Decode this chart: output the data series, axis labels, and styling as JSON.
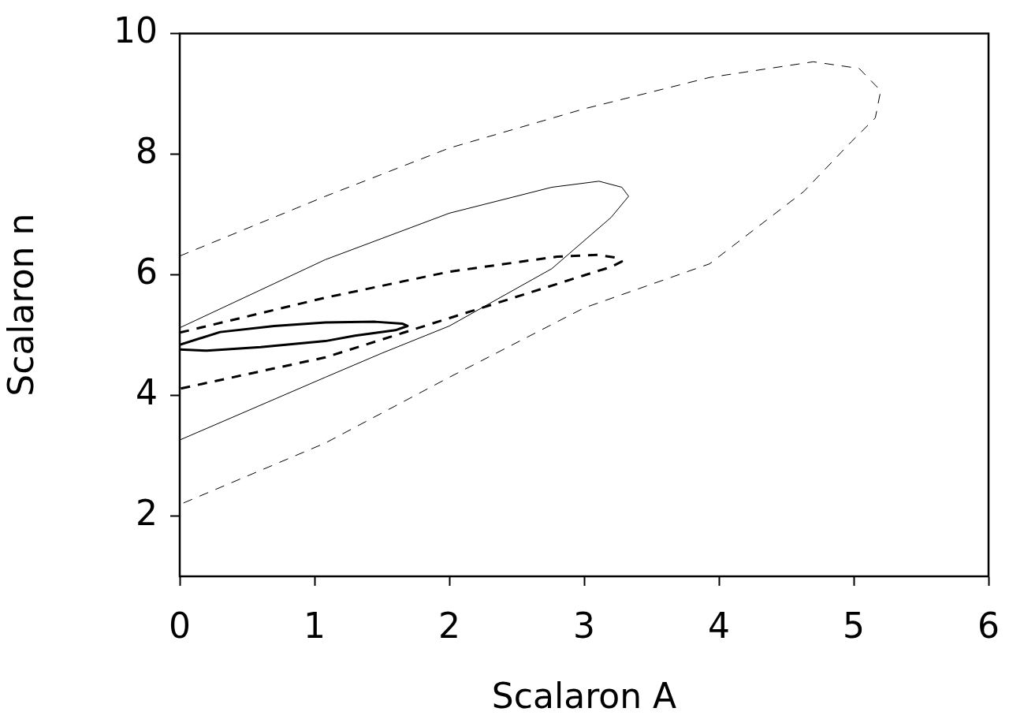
{
  "chart_data": {
    "type": "line",
    "xlabel": "Scalaron A",
    "ylabel": "Scalaron n",
    "xlim": [
      0,
      6
    ],
    "ylim": [
      1,
      10
    ],
    "xticks": [
      0,
      1,
      2,
      3,
      4,
      5,
      6
    ],
    "yticks": [
      2,
      4,
      6,
      8,
      10
    ],
    "grid": false,
    "legend": false,
    "marker": "none",
    "series": [
      {
        "color": "#000000",
        "line_style": "dashed",
        "x": [
          0,
          1.08,
          2.0,
          3.0,
          3.93,
          4.7,
          5.04,
          5.2,
          5.16,
          4.98,
          4.63,
          3.93,
          3.0,
          2.0,
          1.08,
          0
        ],
        "values": [
          6.31,
          7.3,
          8.1,
          8.75,
          9.27,
          9.53,
          9.42,
          9.05,
          8.6,
          8.2,
          7.38,
          6.18,
          5.45,
          4.3,
          3.21,
          2.19
        ]
      },
      {
        "color": "#000000",
        "line_style": "solid",
        "x": [
          0,
          1.08,
          2.0,
          2.76,
          3.11,
          3.28,
          3.33,
          3.2,
          2.76,
          2.0,
          1.5,
          1.08,
          0
        ],
        "values": [
          5.12,
          6.25,
          7.02,
          7.45,
          7.55,
          7.45,
          7.3,
          6.95,
          6.1,
          5.15,
          4.7,
          4.3,
          3.26
        ]
      },
      {
        "color": "#000000",
        "line_style": "dashed",
        "x": [
          0,
          1.08,
          2.0,
          2.8,
          3.1,
          3.25,
          3.28,
          3.2,
          3.0,
          2.0,
          1.08,
          0
        ],
        "values": [
          5.04,
          5.62,
          6.05,
          6.3,
          6.33,
          6.28,
          6.22,
          6.13,
          5.99,
          5.28,
          4.63,
          4.11
        ]
      },
      {
        "color": "#000000",
        "line_style": "solid",
        "x": [
          0,
          0.3,
          0.7,
          1.08,
          1.45,
          1.65,
          1.69,
          1.6,
          1.3,
          1.08,
          0.6,
          0.2,
          0
        ],
        "values": [
          4.84,
          5.05,
          5.15,
          5.21,
          5.22,
          5.19,
          5.15,
          5.08,
          4.99,
          4.9,
          4.8,
          4.74,
          4.76
        ]
      }
    ]
  }
}
